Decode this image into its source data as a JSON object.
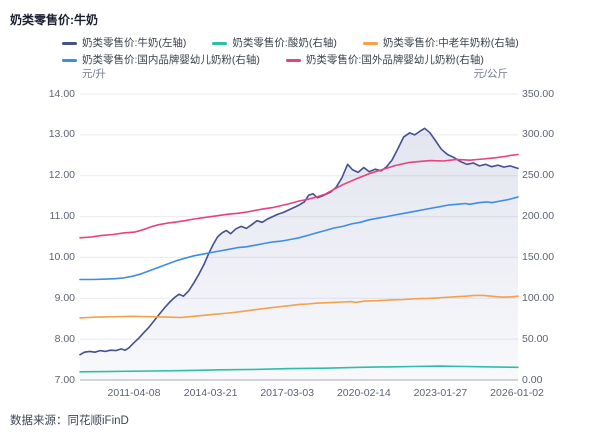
{
  "header": {
    "title": "奶类零售价:牛奶"
  },
  "legend": {
    "items": [
      {
        "label": "奶类零售价:牛奶(左轴)",
        "color": "#44508f"
      },
      {
        "label": "奶类零售价:酸奶(右轴)",
        "color": "#2bbfa9"
      },
      {
        "label": "奶类零售价:中老年奶粉(右轴)",
        "color": "#f5a04a"
      },
      {
        "label": "奶类零售价:国内品牌婴幼儿奶粉(右轴)",
        "color": "#3e8de4"
      },
      {
        "label": "奶类零售价:国外品牌婴幼儿奶粉(右轴)",
        "color": "#e9407f"
      }
    ]
  },
  "axes": {
    "left_unit": "元/升",
    "right_unit": "元/公斤",
    "left_ticks": [
      "14.00",
      "13.00",
      "12.00",
      "11.00",
      "10.00",
      "9.00",
      "8.00",
      "7.00"
    ],
    "right_ticks": [
      "350.00",
      "300.00",
      "250.00",
      "200.00",
      "150.00",
      "100.00",
      "50.00",
      "0.00"
    ],
    "x_ticks": [
      "2011-04-08",
      "2014-03-21",
      "2017-03-03",
      "2020-02-14",
      "2023-01-27",
      "2026-01-02"
    ]
  },
  "footer": {
    "source": "数据来源：同花顺iFinD"
  },
  "chart_data": {
    "type": "line",
    "title": "奶类零售价:牛奶",
    "x_axis": {
      "tick_labels": [
        "2011-04-08",
        "2014-03-21",
        "2017-03-03",
        "2020-02-14",
        "2023-01-27",
        "2026-01-02"
      ],
      "note": "weekly dates, approx 2009 through 2026-01-02, x stored as normalized 0-1 position"
    },
    "left_axis": {
      "unit": "元/升",
      "min": 7,
      "max": 14
    },
    "right_axis": {
      "unit": "元/公斤",
      "min": 0,
      "max": 350
    },
    "grid": "horizontal-only",
    "legend_position": "top",
    "series": [
      {
        "name": "奶类零售价:牛奶(左轴)",
        "axis": "left",
        "color": "#44508f",
        "area_fill": true,
        "points": [
          [
            0.0,
            7.62
          ],
          [
            0.01,
            7.68
          ],
          [
            0.022,
            7.7
          ],
          [
            0.034,
            7.68
          ],
          [
            0.046,
            7.72
          ],
          [
            0.058,
            7.7
          ],
          [
            0.07,
            7.73
          ],
          [
            0.082,
            7.72
          ],
          [
            0.094,
            7.76
          ],
          [
            0.103,
            7.73
          ],
          [
            0.112,
            7.79
          ],
          [
            0.122,
            7.9
          ],
          [
            0.134,
            8.02
          ],
          [
            0.146,
            8.16
          ],
          [
            0.158,
            8.3
          ],
          [
            0.17,
            8.46
          ],
          [
            0.182,
            8.62
          ],
          [
            0.194,
            8.78
          ],
          [
            0.206,
            8.92
          ],
          [
            0.216,
            9.02
          ],
          [
            0.226,
            9.1
          ],
          [
            0.236,
            9.05
          ],
          [
            0.248,
            9.18
          ],
          [
            0.26,
            9.38
          ],
          [
            0.272,
            9.6
          ],
          [
            0.284,
            9.85
          ],
          [
            0.294,
            10.1
          ],
          [
            0.304,
            10.32
          ],
          [
            0.314,
            10.5
          ],
          [
            0.324,
            10.6
          ],
          [
            0.334,
            10.66
          ],
          [
            0.344,
            10.58
          ],
          [
            0.356,
            10.7
          ],
          [
            0.368,
            10.76
          ],
          [
            0.38,
            10.71
          ],
          [
            0.392,
            10.8
          ],
          [
            0.404,
            10.9
          ],
          [
            0.416,
            10.86
          ],
          [
            0.428,
            10.94
          ],
          [
            0.44,
            11.0
          ],
          [
            0.452,
            11.06
          ],
          [
            0.464,
            11.1
          ],
          [
            0.476,
            11.16
          ],
          [
            0.488,
            11.22
          ],
          [
            0.5,
            11.28
          ],
          [
            0.512,
            11.36
          ],
          [
            0.522,
            11.52
          ],
          [
            0.532,
            11.56
          ],
          [
            0.542,
            11.46
          ],
          [
            0.552,
            11.5
          ],
          [
            0.562,
            11.55
          ],
          [
            0.572,
            11.6
          ],
          [
            0.585,
            11.72
          ],
          [
            0.598,
            11.95
          ],
          [
            0.611,
            12.28
          ],
          [
            0.622,
            12.15
          ],
          [
            0.635,
            12.08
          ],
          [
            0.648,
            12.2
          ],
          [
            0.66,
            12.1
          ],
          [
            0.674,
            12.16
          ],
          [
            0.688,
            12.12
          ],
          [
            0.7,
            12.22
          ],
          [
            0.712,
            12.38
          ],
          [
            0.725,
            12.65
          ],
          [
            0.739,
            12.95
          ],
          [
            0.753,
            13.05
          ],
          [
            0.764,
            13.0
          ],
          [
            0.775,
            13.08
          ],
          [
            0.787,
            13.16
          ],
          [
            0.799,
            13.05
          ],
          [
            0.812,
            12.85
          ],
          [
            0.825,
            12.65
          ],
          [
            0.839,
            12.52
          ],
          [
            0.853,
            12.45
          ],
          [
            0.868,
            12.35
          ],
          [
            0.883,
            12.28
          ],
          [
            0.898,
            12.31
          ],
          [
            0.912,
            12.24
          ],
          [
            0.926,
            12.28
          ],
          [
            0.94,
            12.22
          ],
          [
            0.954,
            12.26
          ],
          [
            0.968,
            12.21
          ],
          [
            0.982,
            12.24
          ],
          [
            1.0,
            12.18
          ]
        ]
      },
      {
        "name": "奶类零售价:酸奶(右轴)",
        "axis": "right",
        "color": "#2bbfa9",
        "area_fill": false,
        "points": [
          [
            0.0,
            10
          ],
          [
            0.08,
            10.5
          ],
          [
            0.16,
            11
          ],
          [
            0.24,
            11.5
          ],
          [
            0.32,
            12.5
          ],
          [
            0.4,
            13
          ],
          [
            0.48,
            14
          ],
          [
            0.56,
            14.5
          ],
          [
            0.64,
            15.5
          ],
          [
            0.7,
            16
          ],
          [
            0.76,
            16.5
          ],
          [
            0.82,
            17
          ],
          [
            0.88,
            16.5
          ],
          [
            0.94,
            16
          ],
          [
            1.0,
            15.5
          ]
        ]
      },
      {
        "name": "奶类零售价:中老年奶粉(右轴)",
        "axis": "right",
        "color": "#f5a04a",
        "area_fill": false,
        "points": [
          [
            0.0,
            76
          ],
          [
            0.04,
            77
          ],
          [
            0.08,
            77.5
          ],
          [
            0.12,
            78
          ],
          [
            0.16,
            77.5
          ],
          [
            0.2,
            77
          ],
          [
            0.23,
            76.5
          ],
          [
            0.25,
            77.5
          ],
          [
            0.28,
            79
          ],
          [
            0.31,
            80.5
          ],
          [
            0.34,
            82
          ],
          [
            0.37,
            84
          ],
          [
            0.4,
            86
          ],
          [
            0.43,
            88
          ],
          [
            0.46,
            90
          ],
          [
            0.48,
            91
          ],
          [
            0.5,
            92.5
          ],
          [
            0.52,
            93
          ],
          [
            0.54,
            94
          ],
          [
            0.56,
            94.5
          ],
          [
            0.58,
            95
          ],
          [
            0.6,
            95.5
          ],
          [
            0.62,
            96
          ],
          [
            0.63,
            95
          ],
          [
            0.65,
            96.5
          ],
          [
            0.68,
            97
          ],
          [
            0.71,
            98
          ],
          [
            0.74,
            98.5
          ],
          [
            0.77,
            99.5
          ],
          [
            0.8,
            100
          ],
          [
            0.83,
            101
          ],
          [
            0.86,
            102
          ],
          [
            0.88,
            102.5
          ],
          [
            0.9,
            103.5
          ],
          [
            0.92,
            103.5
          ],
          [
            0.94,
            102.5
          ],
          [
            0.96,
            101.5
          ],
          [
            0.98,
            101.5
          ],
          [
            1.0,
            102.5
          ]
        ]
      },
      {
        "name": "奶类零售价:国内品牌婴幼儿奶粉(右轴)",
        "axis": "right",
        "color": "#3e8de4",
        "area_fill": false,
        "points": [
          [
            0.0,
            123
          ],
          [
            0.03,
            123
          ],
          [
            0.06,
            123.5
          ],
          [
            0.08,
            124
          ],
          [
            0.1,
            125
          ],
          [
            0.12,
            127
          ],
          [
            0.14,
            130
          ],
          [
            0.16,
            134
          ],
          [
            0.18,
            138
          ],
          [
            0.2,
            142
          ],
          [
            0.22,
            146
          ],
          [
            0.24,
            149
          ],
          [
            0.26,
            152
          ],
          [
            0.28,
            154
          ],
          [
            0.3,
            156
          ],
          [
            0.32,
            158
          ],
          [
            0.34,
            160
          ],
          [
            0.36,
            162
          ],
          [
            0.38,
            163
          ],
          [
            0.4,
            165
          ],
          [
            0.42,
            167
          ],
          [
            0.44,
            169
          ],
          [
            0.46,
            170
          ],
          [
            0.48,
            172
          ],
          [
            0.5,
            174
          ],
          [
            0.52,
            177
          ],
          [
            0.54,
            180
          ],
          [
            0.56,
            183
          ],
          [
            0.58,
            186
          ],
          [
            0.6,
            188
          ],
          [
            0.62,
            191
          ],
          [
            0.64,
            193
          ],
          [
            0.66,
            196
          ],
          [
            0.68,
            198
          ],
          [
            0.7,
            200
          ],
          [
            0.72,
            202
          ],
          [
            0.74,
            204
          ],
          [
            0.76,
            206
          ],
          [
            0.78,
            208
          ],
          [
            0.8,
            210
          ],
          [
            0.82,
            212
          ],
          [
            0.84,
            214
          ],
          [
            0.86,
            215
          ],
          [
            0.88,
            216
          ],
          [
            0.89,
            215
          ],
          [
            0.91,
            217
          ],
          [
            0.93,
            218
          ],
          [
            0.94,
            217
          ],
          [
            0.96,
            219
          ],
          [
            0.98,
            221
          ],
          [
            1.0,
            224
          ]
        ]
      },
      {
        "name": "奶类零售价:国外品牌婴幼儿奶粉(右轴)",
        "axis": "right",
        "color": "#e9407f",
        "area_fill": false,
        "points": [
          [
            0.0,
            174
          ],
          [
            0.025,
            175
          ],
          [
            0.05,
            177
          ],
          [
            0.075,
            178
          ],
          [
            0.1,
            180
          ],
          [
            0.125,
            181
          ],
          [
            0.15,
            185
          ],
          [
            0.165,
            188
          ],
          [
            0.18,
            190
          ],
          [
            0.2,
            192
          ],
          [
            0.22,
            193.5
          ],
          [
            0.24,
            195
          ],
          [
            0.26,
            197
          ],
          [
            0.28,
            198.5
          ],
          [
            0.3,
            200
          ],
          [
            0.32,
            201.5
          ],
          [
            0.34,
            203
          ],
          [
            0.36,
            204
          ],
          [
            0.38,
            205.5
          ],
          [
            0.4,
            207.5
          ],
          [
            0.42,
            209.5
          ],
          [
            0.44,
            211
          ],
          [
            0.46,
            213.5
          ],
          [
            0.48,
            216
          ],
          [
            0.5,
            219
          ],
          [
            0.52,
            221
          ],
          [
            0.54,
            224
          ],
          [
            0.56,
            227.5
          ],
          [
            0.572,
            231
          ],
          [
            0.6,
            239
          ],
          [
            0.63,
            246
          ],
          [
            0.66,
            252.5
          ],
          [
            0.69,
            257.5
          ],
          [
            0.72,
            262.5
          ],
          [
            0.75,
            266
          ],
          [
            0.776,
            267.5
          ],
          [
            0.8,
            268.5
          ],
          [
            0.83,
            268
          ],
          [
            0.86,
            270
          ],
          [
            0.89,
            269
          ],
          [
            0.92,
            270.5
          ],
          [
            0.95,
            272
          ],
          [
            0.97,
            273.5
          ],
          [
            0.985,
            275
          ],
          [
            1.0,
            276
          ]
        ]
      }
    ]
  }
}
